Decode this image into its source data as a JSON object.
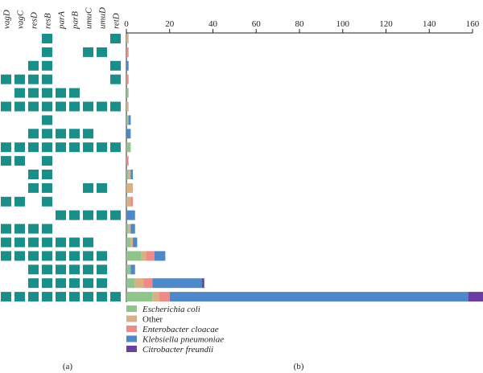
{
  "panel_labels": {
    "a": "(a)",
    "b": "(b)"
  },
  "genes": [
    "vagD",
    "vagC",
    "resD",
    "resB",
    "parA",
    "parB",
    "umuC",
    "umuD",
    "retD"
  ],
  "matrix_color": "#1a8f8a",
  "presence": [
    [
      0,
      0,
      0,
      1,
      0,
      0,
      0,
      0,
      1
    ],
    [
      0,
      0,
      0,
      1,
      0,
      0,
      1,
      1,
      0
    ],
    [
      0,
      0,
      1,
      1,
      0,
      0,
      0,
      0,
      1
    ],
    [
      1,
      1,
      1,
      1,
      0,
      0,
      0,
      0,
      1
    ],
    [
      0,
      1,
      1,
      1,
      1,
      1,
      0,
      0,
      0
    ],
    [
      1,
      1,
      1,
      1,
      1,
      1,
      1,
      1,
      1
    ],
    [
      0,
      0,
      0,
      1,
      0,
      0,
      0,
      0,
      0
    ],
    [
      0,
      0,
      1,
      1,
      1,
      1,
      1,
      0,
      0
    ],
    [
      1,
      1,
      1,
      1,
      1,
      1,
      1,
      1,
      1
    ],
    [
      1,
      1,
      0,
      1,
      0,
      0,
      0,
      0,
      0
    ],
    [
      0,
      0,
      1,
      1,
      0,
      0,
      0,
      0,
      0
    ],
    [
      0,
      0,
      1,
      1,
      0,
      0,
      1,
      1,
      0
    ],
    [
      1,
      1,
      0,
      1,
      0,
      0,
      0,
      0,
      0
    ],
    [
      0,
      0,
      0,
      0,
      1,
      1,
      1,
      1,
      1
    ],
    [
      1,
      1,
      1,
      1,
      0,
      0,
      0,
      0,
      0
    ],
    [
      1,
      1,
      1,
      1,
      1,
      1,
      1,
      0,
      0
    ],
    [
      1,
      1,
      1,
      1,
      1,
      1,
      1,
      1,
      0
    ],
    [
      0,
      0,
      1,
      1,
      1,
      1,
      1,
      1,
      0
    ],
    [
      0,
      0,
      1,
      1,
      1,
      1,
      1,
      1,
      0
    ],
    [
      1,
      1,
      1,
      1,
      1,
      1,
      1,
      1,
      1
    ]
  ],
  "chart_data": {
    "type": "bar",
    "orientation": "horizontal",
    "stacked": true,
    "xlim": [
      0,
      160
    ],
    "x_ticks": [
      0,
      20,
      40,
      60,
      80,
      100,
      120,
      140,
      160
    ],
    "axis_position": "top",
    "legend_position": "bottom-left",
    "series": [
      {
        "name": "Escherichia coli",
        "color": "#8fc48b",
        "values": [
          0,
          0,
          0,
          0,
          1,
          0,
          1,
          0,
          2,
          0,
          1,
          0,
          0,
          0,
          1,
          2,
          7,
          2,
          4,
          12
        ]
      },
      {
        "name": "Other",
        "color": "#d8b085",
        "values": [
          1,
          0,
          0,
          0,
          0,
          1,
          0,
          0,
          0,
          0,
          1,
          3,
          2,
          0,
          1,
          1,
          2,
          0,
          4,
          3
        ]
      },
      {
        "name": "Enterobacter cloacae",
        "color": "#ef8a86",
        "values": [
          0,
          1,
          0,
          1,
          0,
          0,
          0,
          0,
          0,
          1,
          0,
          0,
          1,
          0,
          0,
          0,
          4,
          0,
          4,
          5
        ]
      },
      {
        "name": "Klebsiella pneumoniae",
        "color": "#4f88c9",
        "values": [
          0,
          0,
          1,
          0,
          0,
          0,
          1,
          2,
          0,
          0,
          1,
          0,
          0,
          4,
          2,
          2,
          5,
          2,
          23,
          138
        ]
      },
      {
        "name": "Citrobacter freundii",
        "color": "#6b3fa0",
        "values": [
          0,
          0,
          0,
          0,
          0,
          0,
          0,
          0,
          0,
          0,
          0,
          0,
          0,
          0,
          0,
          0,
          0,
          0,
          1,
          8
        ]
      }
    ]
  }
}
